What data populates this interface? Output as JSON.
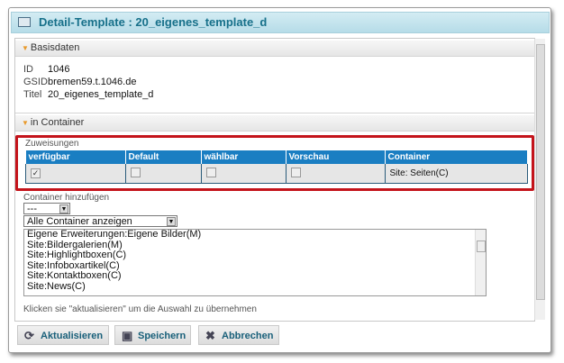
{
  "window": {
    "title": "Detail-Template : 20_eigenes_template_d",
    "icon": "window-icon"
  },
  "basisdaten": {
    "header": "Basisdaten",
    "fields": [
      {
        "key": "ID",
        "value": "1046"
      },
      {
        "key": "GSID",
        "value": "bremen59.t.1046.de"
      },
      {
        "key": "Titel",
        "value": "20_eigenes_template_d"
      }
    ]
  },
  "container": {
    "header": "in Container",
    "zuweisungen": {
      "label": "Zuweisungen",
      "columns": [
        "verfügbar",
        "Default",
        "wählbar",
        "Vorschau",
        "Container"
      ],
      "rows": [
        {
          "verfuegbar": true,
          "default": false,
          "waehlbar": false,
          "vorschau": false,
          "container": "Site: Seiten(C)"
        }
      ]
    },
    "add_label": "Container hinzufügen",
    "select1": "---",
    "select2": "Alle Container anzeigen",
    "list": [
      "Eigene Erweiterungen:Eigene Bilder(M)",
      "Site:Bildergalerien(M)",
      "Site:Highlightboxen(C)",
      "Site:Infoboxartikel(C)",
      "Site:Kontaktboxen(C)",
      "Site:News(C)"
    ],
    "hint": "Klicken sie \"aktualisieren\" um die Auswahl zu übernehmen"
  },
  "buttons": {
    "refresh": "Aktualisieren",
    "save": "Speichern",
    "cancel": "Abbrechen"
  },
  "colors": {
    "title_text": "#17708a",
    "table_header": "#1a7ec2",
    "highlight": "#c4141b"
  }
}
